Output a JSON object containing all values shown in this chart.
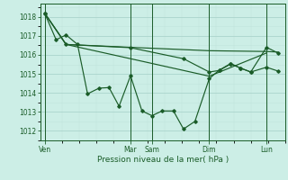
{
  "bg_color": "#cceee6",
  "grid_color_major": "#aad4cc",
  "grid_color_minor": "#c0e4dc",
  "line_color": "#1a5c28",
  "xlabel": "Pression niveau de la mer( hPa )",
  "ylim": [
    1011.5,
    1018.7
  ],
  "yticks": [
    1012,
    1013,
    1014,
    1015,
    1016,
    1017,
    1018
  ],
  "day_labels": [
    "Ven",
    "Mar",
    "Sam",
    "Dim",
    "Lun"
  ],
  "day_x": [
    0,
    60,
    75,
    115,
    155
  ],
  "series1_x": [
    0,
    8,
    15,
    23,
    30,
    38,
    45,
    52,
    60,
    68,
    75,
    82,
    90,
    97,
    105,
    115,
    122,
    130,
    137,
    144,
    155,
    163
  ],
  "series1_y": [
    1018.2,
    1016.8,
    1017.05,
    1016.55,
    1013.95,
    1014.25,
    1014.28,
    1013.3,
    1014.9,
    1013.05,
    1012.8,
    1013.05,
    1013.05,
    1012.1,
    1012.5,
    1014.75,
    1015.2,
    1015.55,
    1015.3,
    1015.1,
    1015.35,
    1015.15
  ],
  "series2_x": [
    0,
    15,
    75,
    115,
    155,
    163
  ],
  "series2_y": [
    1018.2,
    1016.55,
    1016.35,
    1016.22,
    1016.18,
    1016.15
  ],
  "series3_x": [
    0,
    15,
    75,
    115,
    155
  ],
  "series3_y": [
    1018.2,
    1016.55,
    1015.55,
    1014.88,
    1016.1
  ],
  "series4_x": [
    0,
    15,
    60,
    97,
    115,
    122,
    130,
    137,
    144,
    155,
    163
  ],
  "series4_y": [
    1018.2,
    1016.55,
    1016.38,
    1015.8,
    1015.1,
    1015.18,
    1015.52,
    1015.3,
    1015.1,
    1016.4,
    1016.1
  ],
  "xlim": [
    -3,
    168
  ]
}
